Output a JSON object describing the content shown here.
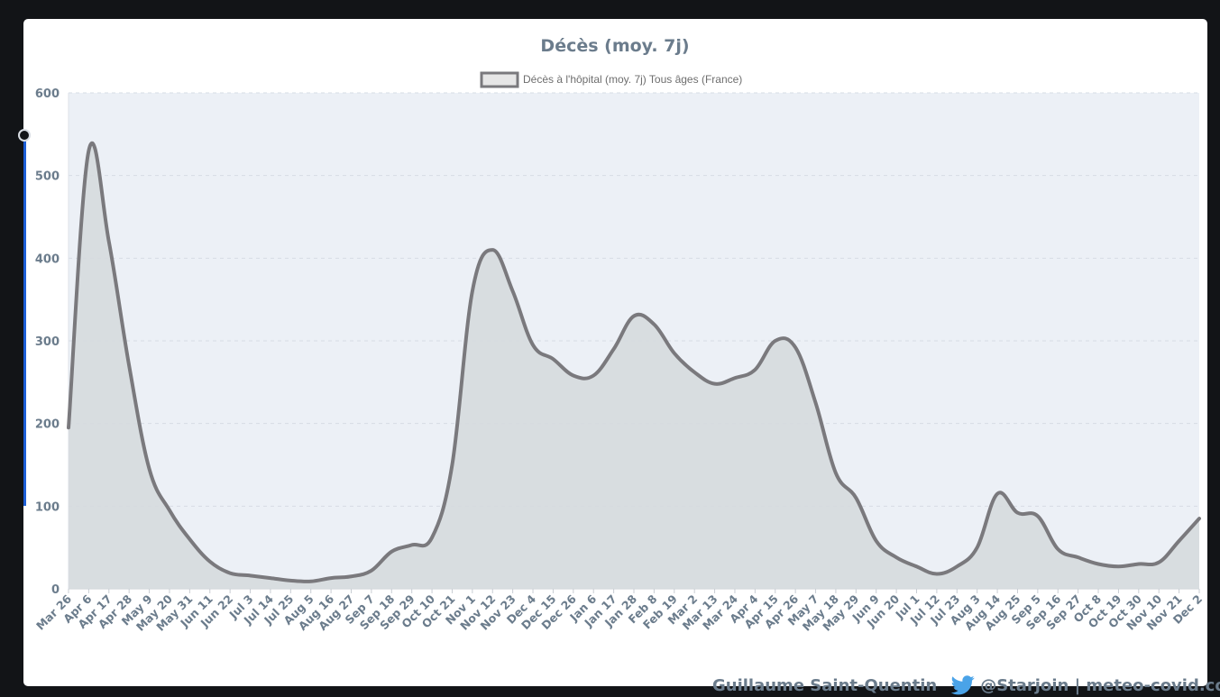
{
  "colors": {
    "accent": "#1d5fd6",
    "line": "#7a797d",
    "fill": "#d6dade",
    "plot_bg": "#ecf0f6",
    "text": "#6b7c8c",
    "twitter": "#4aa3e8"
  },
  "footer": {
    "author": "Guillaume Saint-Quentin",
    "handle": "@Starjoin | meteo-covid.com"
  },
  "chart_data": {
    "type": "area",
    "title": "Décès (moy. 7j)",
    "legend": "Décès à l'hôpital (moy. 7j) Tous âges (France)",
    "legend_position": "top",
    "ylim": [
      0,
      600
    ],
    "yticks": [
      0,
      100,
      200,
      300,
      400,
      500,
      600
    ],
    "grid": true,
    "xticks": [
      "Mar 26",
      "Apr 6",
      "Apr 17",
      "Apr 28",
      "May 9",
      "May 20",
      "May 31",
      "Jun 11",
      "Jun 22",
      "Jul 3",
      "Jul 14",
      "Jul 25",
      "Aug 5",
      "Aug 16",
      "Aug 27",
      "Sep 7",
      "Sep 18",
      "Sep 29",
      "Oct 10",
      "Oct 21",
      "Nov 1",
      "Nov 12",
      "Nov 23",
      "Dec 4",
      "Dec 15",
      "Dec 26",
      "Jan 6",
      "Jan 17",
      "Jan 28",
      "Feb 8",
      "Feb 19",
      "Mar 2",
      "Mar 13",
      "Mar 24",
      "Apr 4",
      "Apr 15",
      "Apr 26",
      "May 7",
      "May 18",
      "May 29",
      "Jun 9",
      "Jun 20",
      "Jul 1",
      "Jul 12",
      "Jul 23",
      "Aug 3",
      "Aug 14",
      "Aug 25",
      "Sep 5",
      "Sep 16",
      "Sep 27",
      "Oct 8",
      "Oct 19",
      "Oct 30",
      "Nov 10",
      "Nov 21",
      "Dec 2"
    ],
    "series": [
      {
        "name": "Décès à l'hôpital (moy. 7j) Tous âges (France)",
        "x": [
          "Mar 26",
          "Apr 6",
          "Apr 17",
          "Apr 28",
          "May 9",
          "May 20",
          "May 31",
          "Jun 11",
          "Jun 22",
          "Jul 3",
          "Jul 14",
          "Jul 25",
          "Aug 5",
          "Aug 16",
          "Aug 27",
          "Sep 7",
          "Sep 18",
          "Sep 29",
          "Oct 10",
          "Oct 21",
          "Nov 1",
          "Nov 12",
          "Nov 23",
          "Dec 4",
          "Dec 15",
          "Dec 26",
          "Jan 6",
          "Jan 17",
          "Jan 28",
          "Feb 8",
          "Feb 19",
          "Mar 2",
          "Mar 13",
          "Mar 24",
          "Apr 4",
          "Apr 15",
          "Apr 26",
          "May 7",
          "May 18",
          "May 29",
          "Jun 9",
          "Jun 20",
          "Jul 1",
          "Jul 12",
          "Jul 23",
          "Aug 3",
          "Aug 14",
          "Aug 25",
          "Sep 5",
          "Sep 16",
          "Sep 27",
          "Oct 8",
          "Oct 19",
          "Oct 30",
          "Nov 10",
          "Nov 21",
          "Dec 2"
        ],
        "values": [
          195,
          530,
          420,
          270,
          145,
          95,
          60,
          33,
          19,
          16,
          13,
          10,
          9,
          13,
          15,
          22,
          45,
          53,
          62,
          150,
          360,
          410,
          360,
          295,
          278,
          258,
          258,
          290,
          330,
          320,
          285,
          262,
          248,
          255,
          265,
          300,
          292,
          225,
          140,
          110,
          58,
          38,
          27,
          18,
          27,
          50,
          115,
          92,
          88,
          48,
          38,
          30,
          27,
          30,
          32,
          58,
          85
        ]
      }
    ]
  }
}
